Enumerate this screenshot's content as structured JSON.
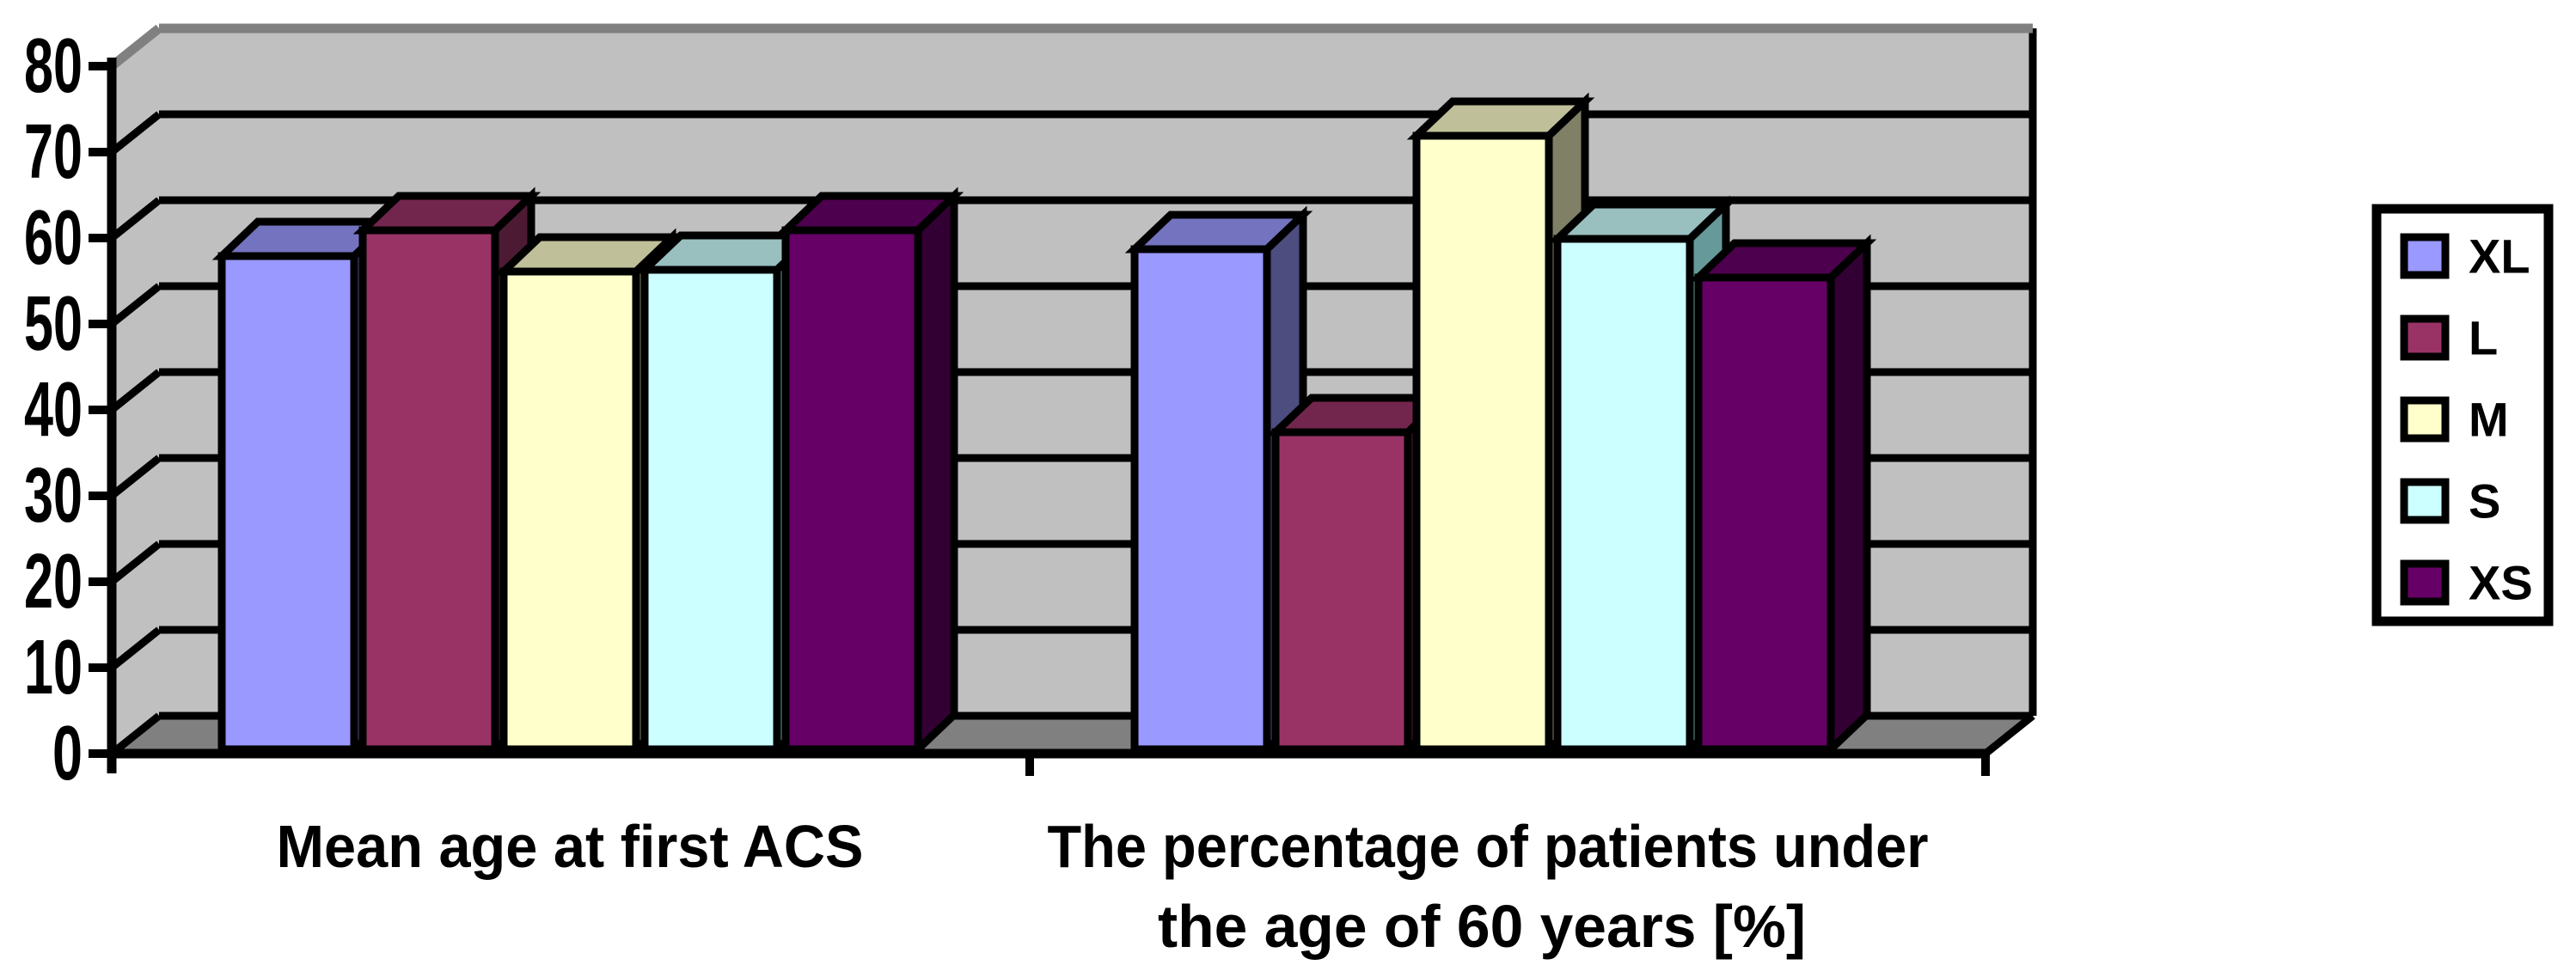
{
  "figure": {
    "background": "#FFFFFF",
    "title": ""
  },
  "chart_data": {
    "type": "bar",
    "variant": "3d-clustered-column",
    "title": "",
    "xlabel": "",
    "ylabel": "",
    "categories": [
      "Mean age at first ACS",
      "The percentage of patients under the age of 60 years [%]"
    ],
    "category_display_lines": [
      [
        "Mean age at first ACS"
      ],
      [
        "The percentage of patients under",
        "the age of 60 years [%]"
      ]
    ],
    "series": [
      {
        "name": "XL",
        "color": "#9999FF",
        "top_color": "#7373BF",
        "side_color": "#4D4D80",
        "values": [
          57.4,
          58.2
        ]
      },
      {
        "name": "L",
        "color": "#993366",
        "top_color": "#73264D",
        "side_color": "#4D1A33",
        "values": [
          60.4,
          36.9
        ]
      },
      {
        "name": "M",
        "color": "#FFFFCC",
        "top_color": "#BFBF99",
        "side_color": "#808066",
        "values": [
          55.6,
          71.4
        ]
      },
      {
        "name": "S",
        "color": "#CCFFFF",
        "top_color": "#99BFBF",
        "side_color": "#669999",
        "values": [
          55.8,
          59.4
        ]
      },
      {
        "name": "XS",
        "color": "#660066",
        "top_color": "#4D004D",
        "side_color": "#330033",
        "values": [
          60.4,
          54.9
        ]
      }
    ],
    "y_axis": {
      "min": 0,
      "max": 80,
      "step": 10,
      "tick_labels": [
        "0",
        "10",
        "20",
        "30",
        "40",
        "50",
        "60",
        "70",
        "80"
      ]
    },
    "legend": {
      "position": "right",
      "entries": [
        "XL",
        "L",
        "M",
        "S",
        "XS"
      ]
    },
    "grid": "horizontal-major",
    "wall_color": "#C0C0C0",
    "floor_color": "#808080",
    "wall_edge_color": "#808080",
    "line_color": "#000000",
    "text_color": "#000000"
  }
}
